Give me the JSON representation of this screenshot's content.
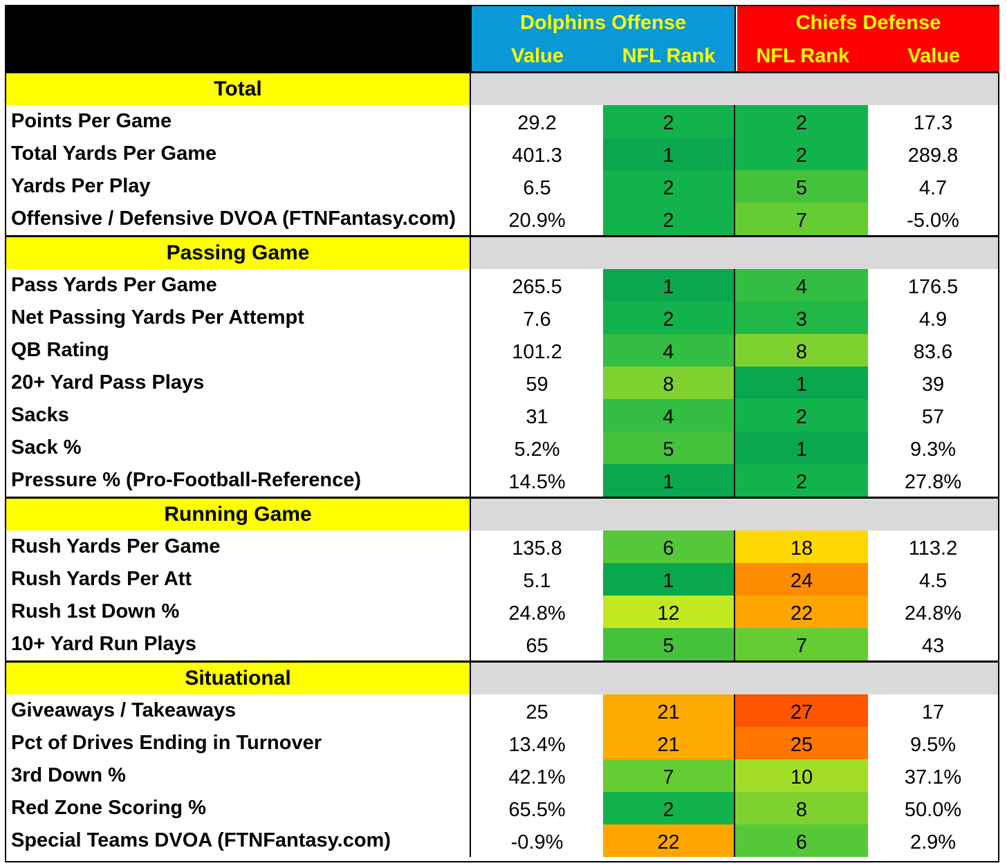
{
  "header": {
    "offense_team": "Dolphins Offense",
    "defense_team": "Chiefs Defense",
    "value_label": "Value",
    "rank_label": "NFL Rank"
  },
  "sections": [
    {
      "title": "Total",
      "rows": [
        {
          "label": "Points Per Game",
          "off_value": "29.2",
          "off_rank": "2",
          "def_rank": "2",
          "def_value": "17.3",
          "off_color": "#12b34c",
          "def_color": "#12b34c"
        },
        {
          "label": "Total Yards Per Game",
          "off_value": "401.3",
          "off_rank": "1",
          "def_rank": "2",
          "def_value": "289.8",
          "off_color": "#0aa84e",
          "def_color": "#12b34c"
        },
        {
          "label": "Yards Per Play",
          "off_value": "6.5",
          "off_rank": "2",
          "def_rank": "5",
          "def_value": "4.7",
          "off_color": "#12b34c",
          "def_color": "#45c23c"
        },
        {
          "label": "Offensive / Defensive DVOA (FTNFantasy.com)",
          "off_value": "20.9%",
          "off_rank": "2",
          "def_rank": "7",
          "def_value": "-5.0%",
          "off_color": "#12b34c",
          "def_color": "#66cc33"
        }
      ]
    },
    {
      "title": "Passing Game",
      "rows": [
        {
          "label": "Pass Yards Per Game",
          "off_value": "265.5",
          "off_rank": "1",
          "def_rank": "4",
          "def_value": "176.5",
          "off_color": "#0aa84e",
          "def_color": "#33bd42"
        },
        {
          "label": "Net Passing Yards Per Attempt",
          "off_value": "7.6",
          "off_rank": "2",
          "def_rank": "3",
          "def_value": "4.9",
          "off_color": "#12b34c",
          "def_color": "#22b847"
        },
        {
          "label": "QB Rating",
          "off_value": "101.2",
          "off_rank": "4",
          "def_rank": "8",
          "def_value": "83.6",
          "off_color": "#33bd42",
          "def_color": "#7fd130"
        },
        {
          "label": "20+ Yard Pass Plays",
          "off_value": "59",
          "off_rank": "8",
          "def_rank": "1",
          "def_value": "39",
          "off_color": "#7fd130",
          "def_color": "#0aa84e"
        },
        {
          "label": "Sacks",
          "off_value": "31",
          "off_rank": "4",
          "def_rank": "2",
          "def_value": "57",
          "off_color": "#33bd42",
          "def_color": "#12b34c"
        },
        {
          "label": "Sack %",
          "off_value": "5.2%",
          "off_rank": "5",
          "def_rank": "1",
          "def_value": "9.3%",
          "off_color": "#45c23c",
          "def_color": "#0aa84e"
        },
        {
          "label": "Pressure % (Pro-Football-Reference)",
          "off_value": "14.5%",
          "off_rank": "1",
          "def_rank": "2",
          "def_value": "27.8%",
          "off_color": "#0aa84e",
          "def_color": "#12b34c"
        }
      ]
    },
    {
      "title": "Running Game",
      "rows": [
        {
          "label": "Rush Yards Per Game",
          "off_value": "135.8",
          "off_rank": "6",
          "def_rank": "18",
          "def_value": "113.2",
          "off_color": "#55c738",
          "def_color": "#ffd700"
        },
        {
          "label": "Rush Yards Per Att",
          "off_value": "5.1",
          "off_rank": "1",
          "def_rank": "24",
          "def_value": "4.5",
          "off_color": "#0aa84e",
          "def_color": "#ff8c00"
        },
        {
          "label": "Rush 1st Down %",
          "off_value": "24.8%",
          "off_rank": "12",
          "def_rank": "22",
          "def_value": "24.8%",
          "off_color": "#c2e81f",
          "def_color": "#ffa500"
        },
        {
          "label": "10+ Yard Run Plays",
          "off_value": "65",
          "off_rank": "5",
          "def_rank": "7",
          "def_value": "43",
          "off_color": "#45c23c",
          "def_color": "#66cc33"
        }
      ]
    },
    {
      "title": "Situational",
      "rows": [
        {
          "label": "Giveaways / Takeaways",
          "off_value": "25",
          "off_rank": "21",
          "def_rank": "27",
          "def_value": "17",
          "off_color": "#ffaa00",
          "def_color": "#ff5500"
        },
        {
          "label": "Pct of Drives Ending in Turnover",
          "off_value": "13.4%",
          "off_rank": "21",
          "def_rank": "25",
          "def_value": "9.5%",
          "off_color": "#ffaa00",
          "def_color": "#ff7700"
        },
        {
          "label": "3rd Down %",
          "off_value": "42.1%",
          "off_rank": "7",
          "def_rank": "10",
          "def_value": "37.1%",
          "off_color": "#66cc33",
          "def_color": "#a3dd28"
        },
        {
          "label": "Red Zone Scoring %",
          "off_value": "65.5%",
          "off_rank": "2",
          "def_rank": "8",
          "def_value": "50.0%",
          "off_color": "#12b34c",
          "def_color": "#7fd130"
        },
        {
          "label": "Special Teams DVOA  (FTNFantasy.com)",
          "off_value": "-0.9%",
          "off_rank": "22",
          "def_rank": "6",
          "def_value": "2.9%",
          "off_color": "#ffa500",
          "def_color": "#55c738"
        }
      ]
    }
  ]
}
